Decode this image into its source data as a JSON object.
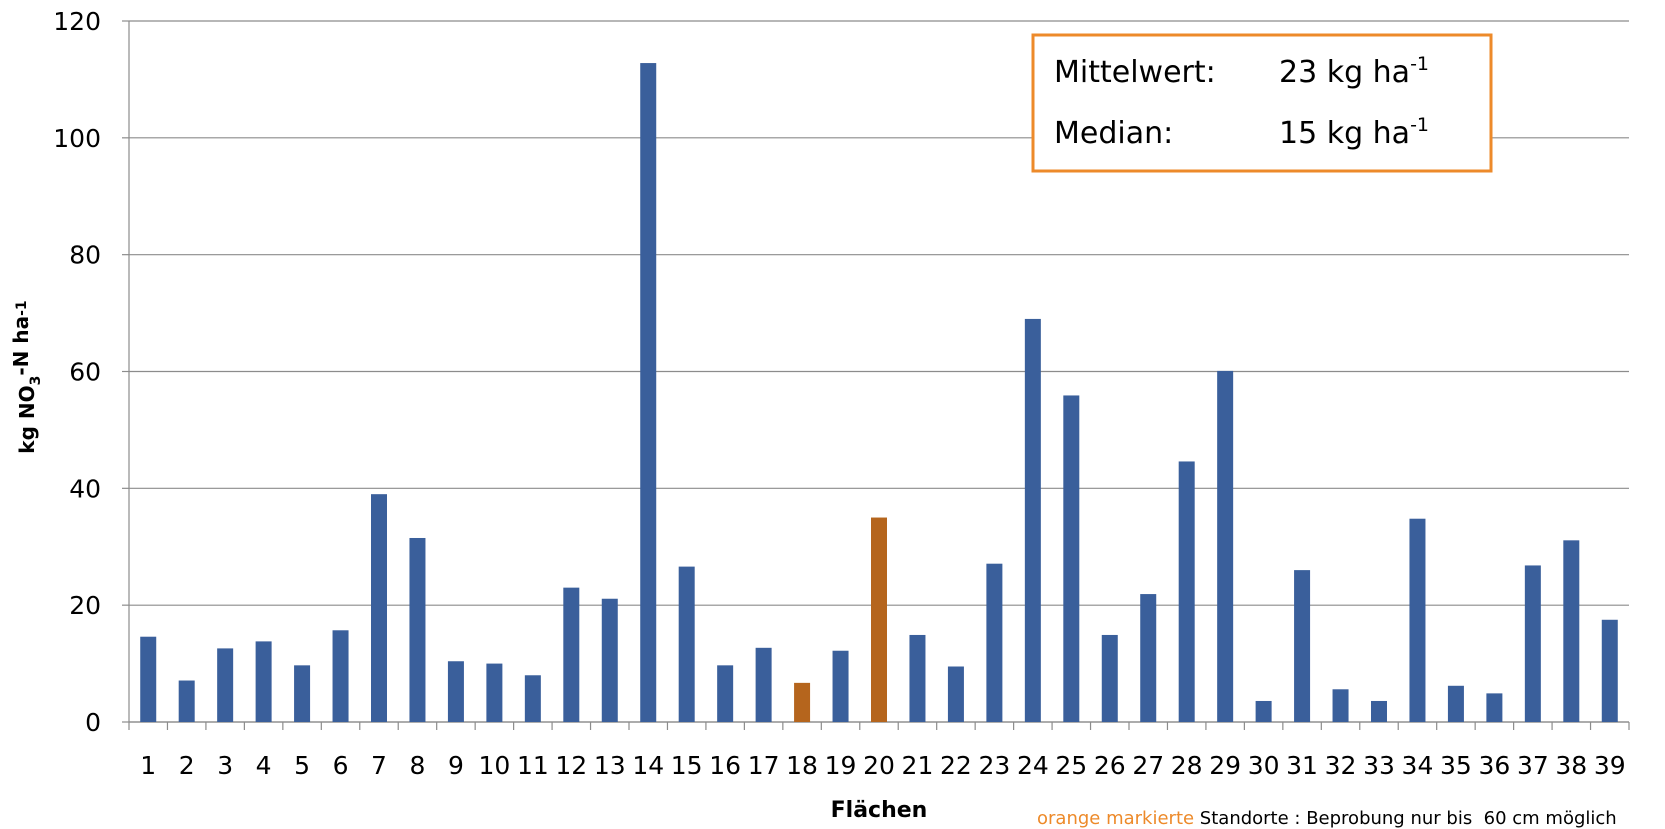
{
  "chart_data": {
    "type": "bar",
    "x_label": "Flächen",
    "y_label": {
      "parts": [
        "kg NO",
        "3",
        "-N ha",
        "-1"
      ]
    },
    "categories": [
      "1",
      "2",
      "3",
      "4",
      "5",
      "6",
      "7",
      "8",
      "9",
      "10",
      "11",
      "12",
      "13",
      "14",
      "15",
      "16",
      "17",
      "18",
      "19",
      "20",
      "21",
      "22",
      "23",
      "24",
      "25",
      "26",
      "27",
      "28",
      "29",
      "30",
      "31",
      "32",
      "33",
      "34",
      "35",
      "36",
      "37",
      "38",
      "39"
    ],
    "values": [
      14.6,
      7.1,
      12.6,
      13.8,
      9.7,
      15.7,
      39,
      31.5,
      10.4,
      10,
      8,
      23,
      21.1,
      112.8,
      26.6,
      9.7,
      12.7,
      6.7,
      12.2,
      35,
      14.9,
      9.5,
      27.1,
      69,
      55.9,
      14.9,
      21.9,
      44.6,
      60.1,
      3.6,
      26,
      5.6,
      3.6,
      34.8,
      6.2,
      4.9,
      26.8,
      31.1,
      17.5
    ],
    "colors": [
      "#3a5f9b",
      "#3a5f9b",
      "#3a5f9b",
      "#3a5f9b",
      "#3a5f9b",
      "#3a5f9b",
      "#3a5f9b",
      "#3a5f9b",
      "#3a5f9b",
      "#3a5f9b",
      "#3a5f9b",
      "#3a5f9b",
      "#3a5f9b",
      "#3a5f9b",
      "#3a5f9b",
      "#3a5f9b",
      "#3a5f9b",
      "#b5651d",
      "#3a5f9b",
      "#b5651d",
      "#3a5f9b",
      "#3a5f9b",
      "#3a5f9b",
      "#3a5f9b",
      "#3a5f9b",
      "#3a5f9b",
      "#3a5f9b",
      "#3a5f9b",
      "#3a5f9b",
      "#3a5f9b",
      "#3a5f9b",
      "#3a5f9b",
      "#3a5f9b",
      "#3a5f9b",
      "#3a5f9b",
      "#3a5f9b",
      "#3a5f9b",
      "#3a5f9b",
      "#3a5f9b"
    ],
    "ylim": [
      0,
      120
    ],
    "yticks": [
      0,
      20,
      40,
      60,
      80,
      100,
      120
    ],
    "grid": true,
    "annotation_box": {
      "rows": [
        {
          "label": "Mittelwert:",
          "value": "23 kg ha",
          "sup": "-1"
        },
        {
          "label": "Median:",
          "value": "15 kg ha",
          "sup": "-1"
        }
      ]
    },
    "footnote": {
      "highlight": "orange markierte",
      "text": " Standorte : Beprobung nur bis  60 cm möglich"
    }
  }
}
